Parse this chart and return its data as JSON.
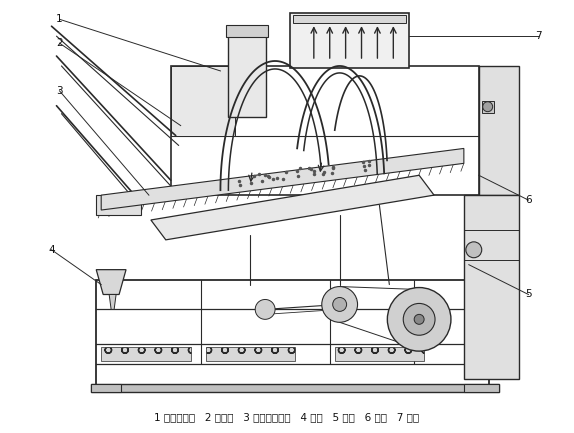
{
  "figure_width": 5.74,
  "figure_height": 4.33,
  "dpi": 100,
  "bg_color": "#ffffff",
  "legend_text": "1 物料喂入斗   2 接石斗   3 筛面调节机构   4 石子   5 大豆   6 物料   7 風流",
  "legend_fontsize": 7.5,
  "line_color": "#2a2a2a",
  "label_fontsize": 7.5
}
